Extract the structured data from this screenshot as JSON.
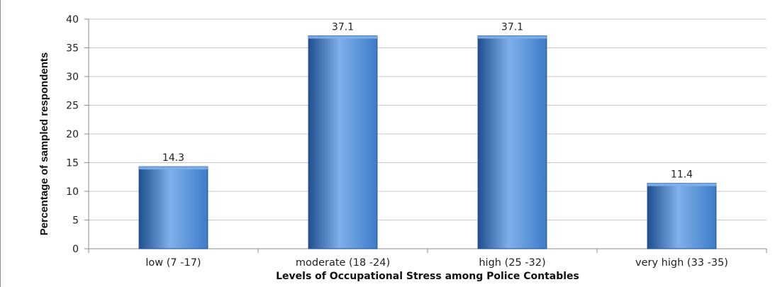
{
  "chart_data": {
    "type": "bar",
    "categories": [
      "low (7 -17)",
      "moderate (18 -24)",
      "high (25 -32)",
      "very high (33 -35)"
    ],
    "values": [
      14.3,
      37.1,
      37.1,
      11.4
    ],
    "value_labels": [
      "14.3",
      "37.1",
      "37.1",
      "11.4"
    ],
    "title": "",
    "xlabel": "Levels of Occupational Stress among Police Contables",
    "ylabel": "Percentage of sampled respondents",
    "ylim": [
      0,
      40
    ],
    "yticks": [
      0,
      5,
      10,
      15,
      20,
      25,
      30,
      35,
      40
    ],
    "grid": true,
    "legend": "none",
    "colors": {
      "bar": "#3d7cc9",
      "bar_light": "#7fb0ea",
      "bar_dark": "#1f4f8f",
      "grid": "#c8c8c8",
      "axis": "#8c8c8c"
    }
  }
}
